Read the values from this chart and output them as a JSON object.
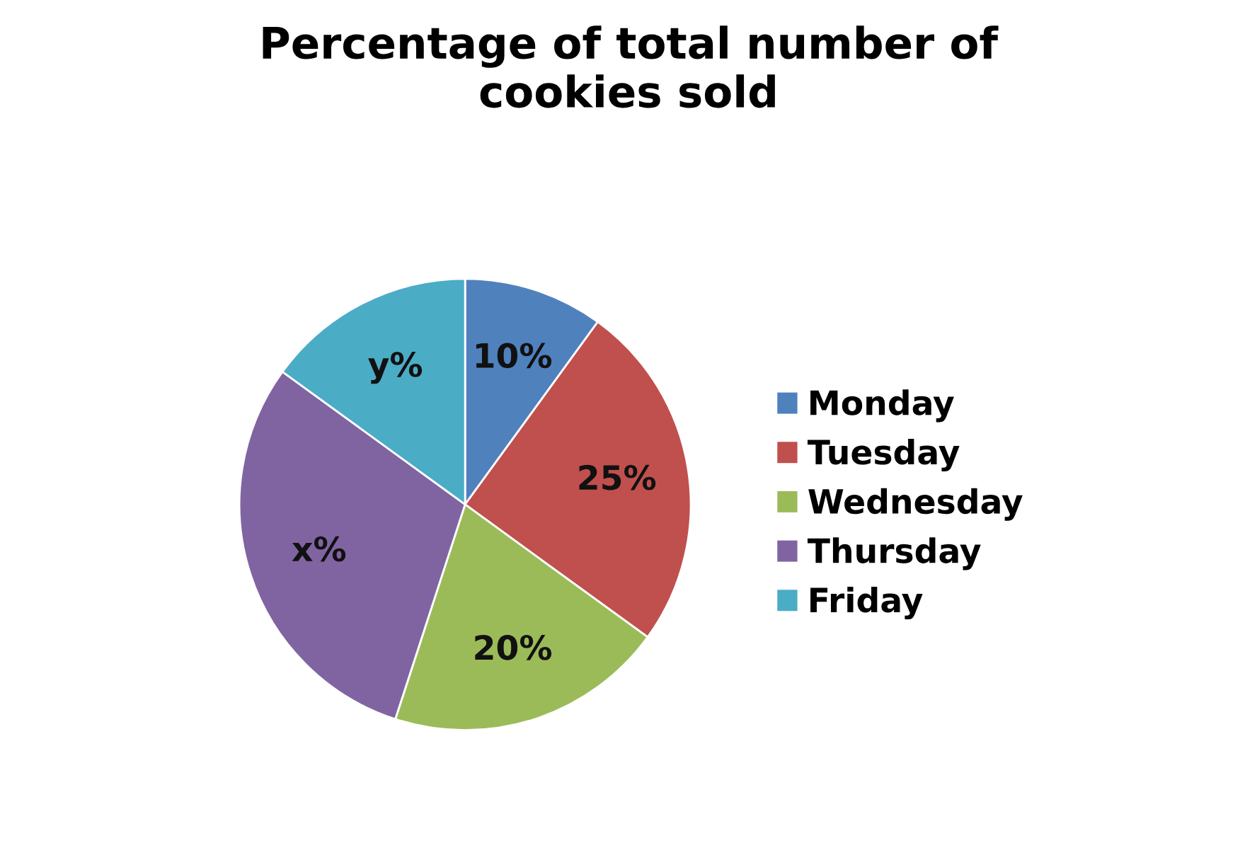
{
  "chart_data": {
    "type": "pie",
    "title": "Percentage of total number of\ncookies sold",
    "categories": [
      "Monday",
      "Tuesday",
      "Wednesday",
      "Thursday",
      "Friday"
    ],
    "values": [
      10,
      25,
      20,
      30,
      15
    ],
    "value_labels": [
      "10%",
      "25%",
      "20%",
      "x%",
      "y%"
    ],
    "colors": [
      "#4f81bd",
      "#c0504d",
      "#9bbb59",
      "#8064a2",
      "#4bacc6"
    ],
    "legend": "right"
  }
}
